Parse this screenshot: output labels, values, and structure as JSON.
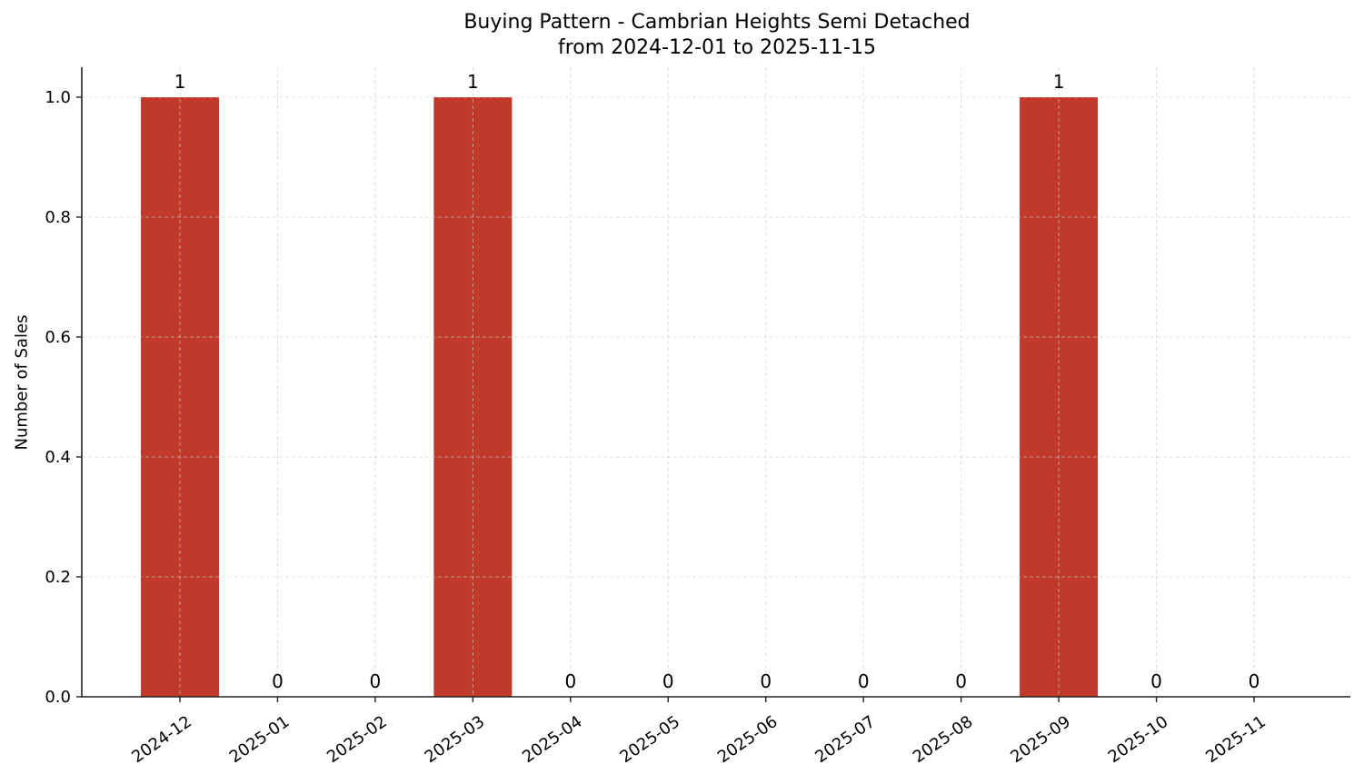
{
  "chart_data": {
    "type": "bar",
    "title": "Buying Pattern - Cambrian Heights Semi Detached",
    "subtitle": "from 2024-12-01 to 2025-11-15",
    "xlabel": "",
    "ylabel": "Number of Sales",
    "categories": [
      "2024-12",
      "2025-01",
      "2025-02",
      "2025-03",
      "2025-04",
      "2025-05",
      "2025-06",
      "2025-07",
      "2025-08",
      "2025-09",
      "2025-10",
      "2025-11"
    ],
    "values": [
      1,
      0,
      0,
      1,
      0,
      0,
      0,
      0,
      0,
      1,
      0,
      0
    ],
    "data_labels": [
      "1",
      "0",
      "0",
      "1",
      "0",
      "0",
      "0",
      "0",
      "0",
      "1",
      "0",
      "0"
    ],
    "ylim": [
      0,
      1.05
    ],
    "yticks": [
      "0.0",
      "0.2",
      "0.4",
      "0.6",
      "0.8",
      "1.0"
    ],
    "grid": true,
    "legend": null,
    "bar_color": "#c0392b"
  }
}
